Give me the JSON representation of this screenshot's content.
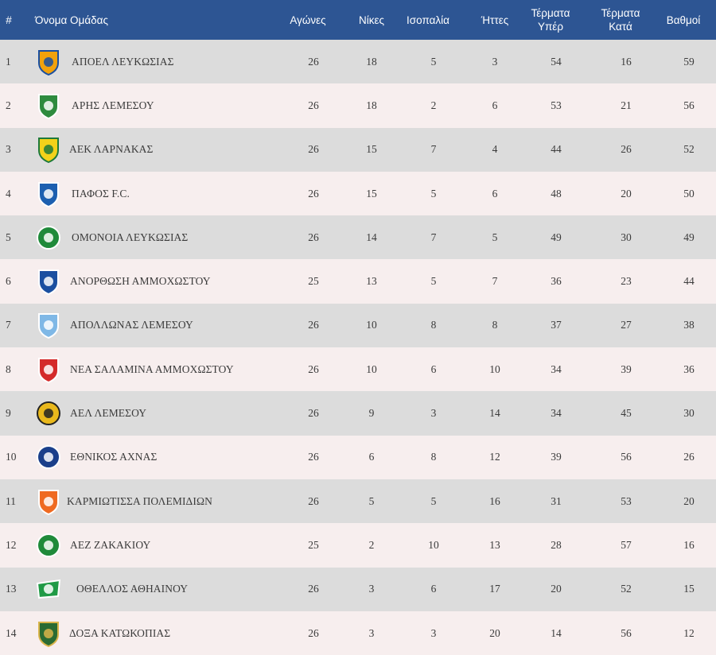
{
  "header": {
    "pos": "#",
    "team": "Όνομα Ομάδας",
    "played": "Αγώνες",
    "wins": "Νίκες",
    "draws": "Ισοπαλία",
    "losses": "Ήττες",
    "gf_line1": "Τέρματα",
    "gf_line2": "Υπέρ",
    "ga_line1": "Τέρματα",
    "ga_line2": "Κατά",
    "points": "Βαθμοί"
  },
  "rows": [
    {
      "pos": "1",
      "team": "ΑΠΟΕΛ ΛΕΥΚΩΣΙΑΣ",
      "played": "26",
      "wins": "18",
      "draws": "5",
      "losses": "3",
      "gf": "54",
      "ga": "16",
      "points": "59",
      "badge": "apoel-badge-icon",
      "badge_primary": "#f2a20c",
      "badge_secondary": "#1a4fa0"
    },
    {
      "pos": "2",
      "team": "ΑΡΗΣ ΛΕΜΕΣΟΥ",
      "played": "26",
      "wins": "18",
      "draws": "2",
      "losses": "6",
      "gf": "53",
      "ga": "21",
      "points": "56",
      "badge": "aris-badge-icon",
      "badge_primary": "#2e8b3e",
      "badge_secondary": "#ffffff"
    },
    {
      "pos": "3",
      "team": "ΑΕΚ ΛΑΡΝΑΚΑΣ",
      "played": "26",
      "wins": "15",
      "draws": "7",
      "losses": "4",
      "gf": "44",
      "ga": "26",
      "points": "52",
      "badge": "aek-badge-icon",
      "badge_primary": "#f3d21a",
      "badge_secondary": "#1e7a3a"
    },
    {
      "pos": "4",
      "team": "ΠΑΦΟΣ F.C.",
      "played": "26",
      "wins": "15",
      "draws": "5",
      "losses": "6",
      "gf": "48",
      "ga": "20",
      "points": "50",
      "badge": "pafos-badge-icon",
      "badge_primary": "#1c5fb0",
      "badge_secondary": "#ffffff"
    },
    {
      "pos": "5",
      "team": "ΟΜΟΝΟΙΑ ΛΕΥΚΩΣΙΑΣ",
      "played": "26",
      "wins": "14",
      "draws": "7",
      "losses": "5",
      "gf": "49",
      "ga": "30",
      "points": "49",
      "badge": "omonoia-badge-icon",
      "badge_primary": "#1f8a3a",
      "badge_secondary": "#ffffff"
    },
    {
      "pos": "6",
      "team": "ΑΝΟΡΘΩΣΗ ΑΜΜΟΧΩΣΤΟΥ",
      "played": "25",
      "wins": "13",
      "draws": "5",
      "losses": "7",
      "gf": "36",
      "ga": "23",
      "points": "44",
      "badge": "anorthosis-badge-icon",
      "badge_primary": "#1a4fa0",
      "badge_secondary": "#ffffff"
    },
    {
      "pos": "7",
      "team": "ΑΠΟΛΛΩΝΑΣ ΛΕΜΕΣΟΥ",
      "played": "26",
      "wins": "10",
      "draws": "8",
      "losses": "8",
      "gf": "37",
      "ga": "27",
      "points": "38",
      "badge": "apollon-badge-icon",
      "badge_primary": "#7fb8e6",
      "badge_secondary": "#ffffff"
    },
    {
      "pos": "8",
      "team": "ΝΕΑ ΣΑΛΑΜΙΝΑ ΑΜΜΟΧΩΣΤΟΥ",
      "played": "26",
      "wins": "10",
      "draws": "6",
      "losses": "10",
      "gf": "34",
      "ga": "39",
      "points": "36",
      "badge": "nea-salamina-badge-icon",
      "badge_primary": "#d42a2a",
      "badge_secondary": "#ffffff"
    },
    {
      "pos": "9",
      "team": "ΑΕΛ ΛΕΜΕΣΟΥ",
      "played": "26",
      "wins": "9",
      "draws": "3",
      "losses": "14",
      "gf": "34",
      "ga": "45",
      "points": "30",
      "badge": "ael-badge-icon",
      "badge_primary": "#e9b81c",
      "badge_secondary": "#222222"
    },
    {
      "pos": "10",
      "team": "ΕΘΝΙΚΟΣ ΑΧΝΑΣ",
      "played": "26",
      "wins": "6",
      "draws": "8",
      "losses": "12",
      "gf": "39",
      "ga": "56",
      "points": "26",
      "badge": "ethnikos-badge-icon",
      "badge_primary": "#1a3f8a",
      "badge_secondary": "#ffffff"
    },
    {
      "pos": "11",
      "team": "ΚΑΡΜΙΩΤΙΣΣΑ ΠΟΛΕΜΙΔΙΩΝ",
      "played": "26",
      "wins": "5",
      "draws": "5",
      "losses": "16",
      "gf": "31",
      "ga": "53",
      "points": "20",
      "badge": "karmiotissa-badge-icon",
      "badge_primary": "#ef6a21",
      "badge_secondary": "#ffffff"
    },
    {
      "pos": "12",
      "team": "ΑΕΖ ΖΑΚΑΚΙΟΥ",
      "played": "25",
      "wins": "2",
      "draws": "10",
      "losses": "13",
      "gf": "28",
      "ga": "57",
      "points": "16",
      "badge": "aez-badge-icon",
      "badge_primary": "#1f8a3a",
      "badge_secondary": "#ffffff"
    },
    {
      "pos": "13",
      "team": "ΟΘΕΛΛΟΣ ΑΘΗΑΙΝΟΥ",
      "played": "26",
      "wins": "3",
      "draws": "6",
      "losses": "17",
      "gf": "20",
      "ga": "52",
      "points": "15",
      "badge": "othellos-badge-icon",
      "badge_primary": "#1f9a45",
      "badge_secondary": "#ffffff"
    },
    {
      "pos": "14",
      "team": "ΔΟΞΑ ΚΑΤΩΚΟΠΙΑΣ",
      "played": "26",
      "wins": "3",
      "draws": "3",
      "losses": "20",
      "gf": "14",
      "ga": "56",
      "points": "12",
      "badge": "doxa-badge-icon",
      "badge_primary": "#2a6b33",
      "badge_secondary": "#d9b44a"
    }
  ]
}
